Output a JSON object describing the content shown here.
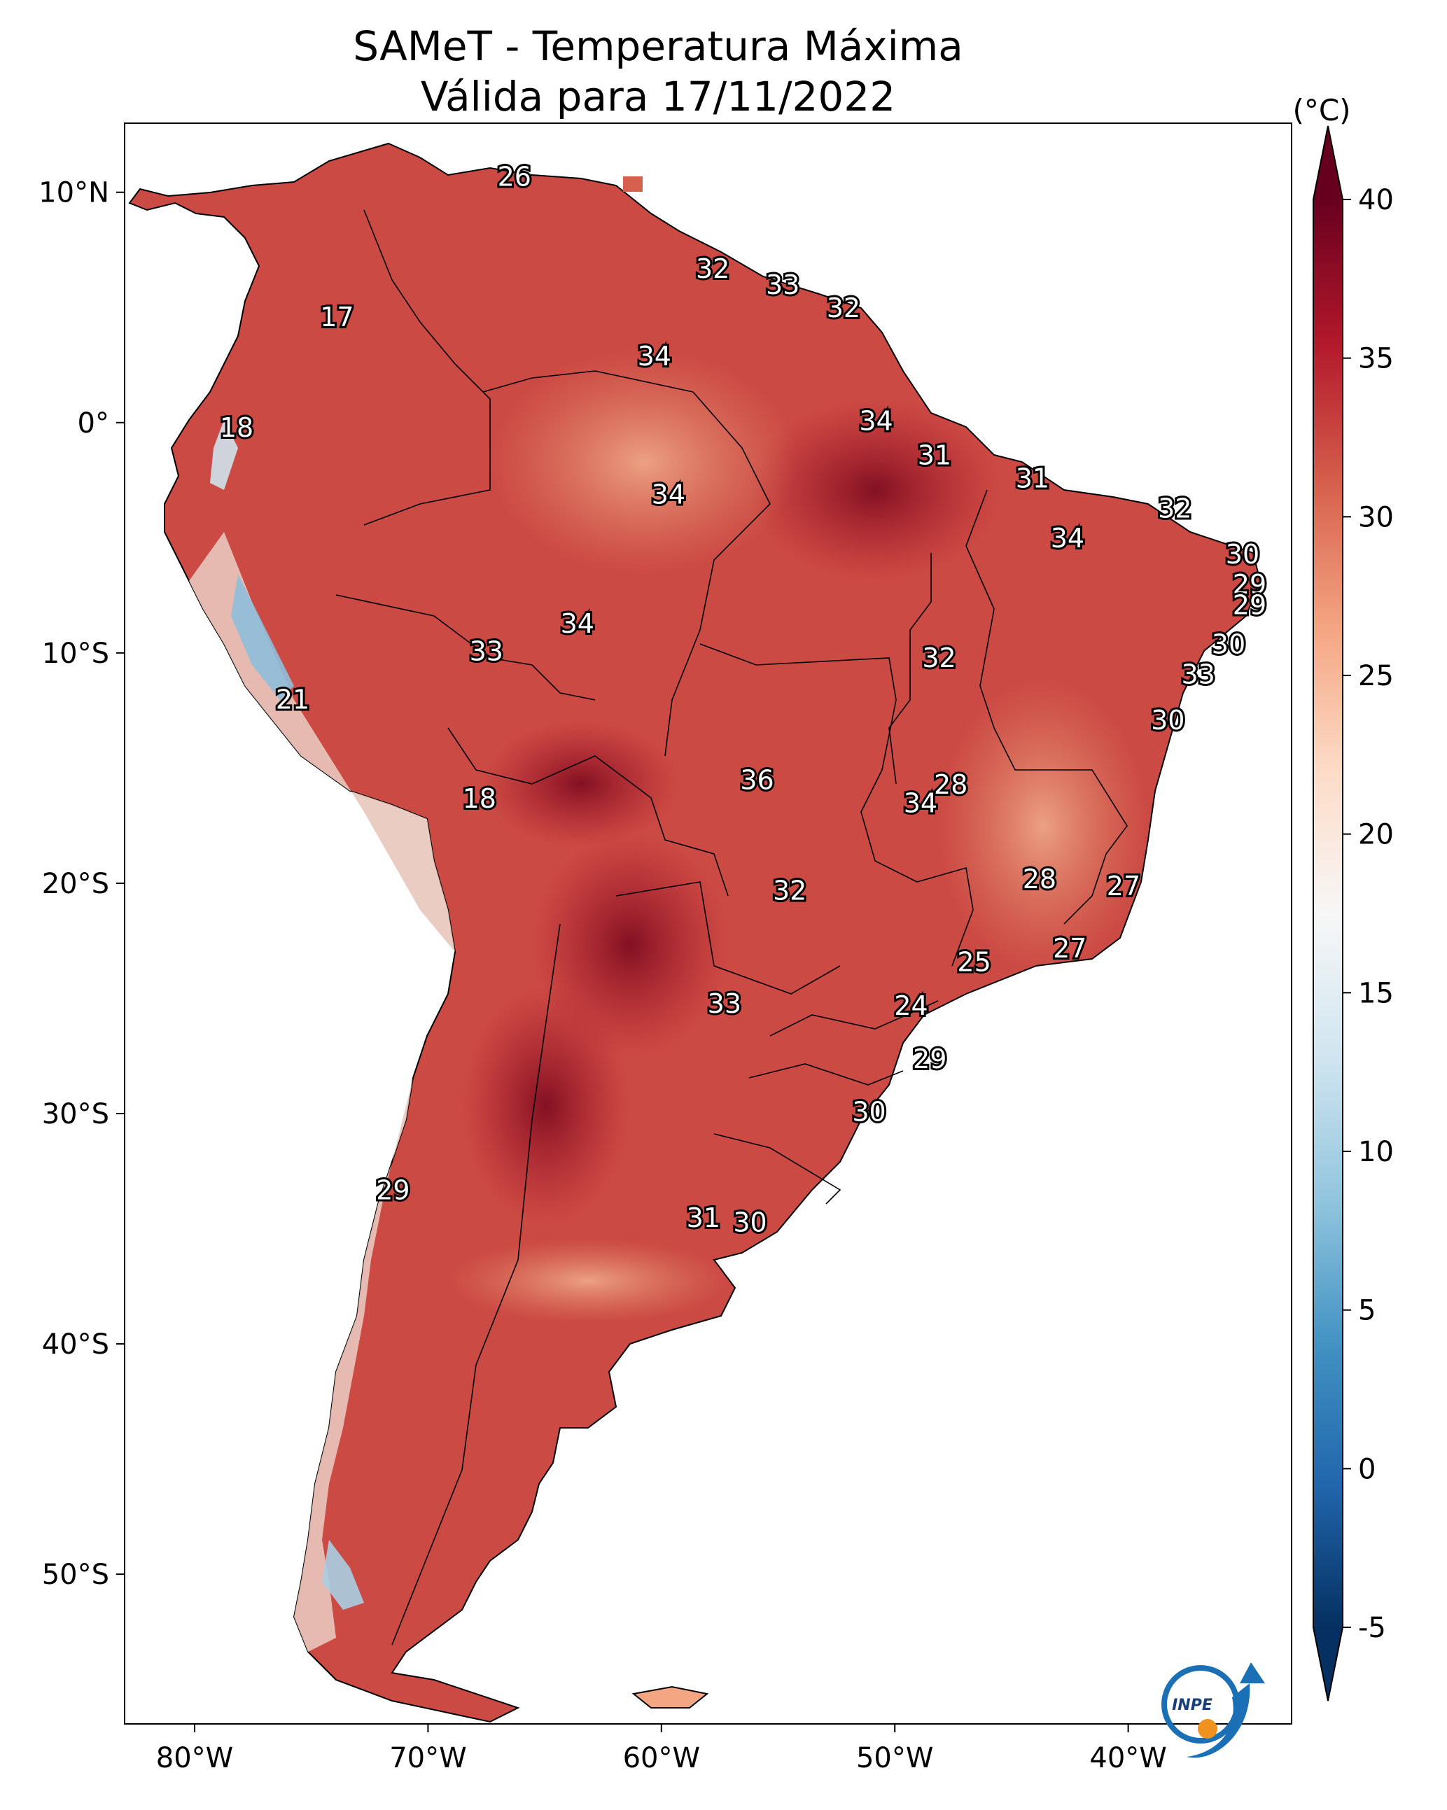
{
  "title": {
    "line1": "SAMeT - Temperatura Máxima",
    "line2": "Válida para 17/11/2022"
  },
  "map": {
    "extent": {
      "lon_min": -83.0,
      "lon_max": -33.0,
      "lat_min": -56.5,
      "lat_max": 13.0
    },
    "lon_ticks": [
      {
        "value": -80,
        "label": "80°W"
      },
      {
        "value": -70,
        "label": "70°W"
      },
      {
        "value": -60,
        "label": "60°W"
      },
      {
        "value": -50,
        "label": "50°W"
      },
      {
        "value": -40,
        "label": "40°W"
      }
    ],
    "lat_ticks": [
      {
        "value": 10,
        "label": "10°N"
      },
      {
        "value": 0,
        "label": "0°"
      },
      {
        "value": -10,
        "label": "10°S"
      },
      {
        "value": -20,
        "label": "20°S"
      },
      {
        "value": -30,
        "label": "30°S"
      },
      {
        "value": -40,
        "label": "40°S"
      },
      {
        "value": -50,
        "label": "50°S"
      }
    ],
    "station_labels": [
      {
        "text": "26",
        "lon": -66.3,
        "lat": 10.6
      },
      {
        "text": "32",
        "lon": -57.8,
        "lat": 6.6
      },
      {
        "text": "33",
        "lon": -54.8,
        "lat": 5.9
      },
      {
        "text": "32",
        "lon": -52.2,
        "lat": 4.9
      },
      {
        "text": "17",
        "lon": -73.9,
        "lat": 4.5
      },
      {
        "text": "34",
        "lon": -60.3,
        "lat": 2.8
      },
      {
        "text": "18",
        "lon": -78.2,
        "lat": -0.3
      },
      {
        "text": "34",
        "lon": -50.8,
        "lat": 0.0
      },
      {
        "text": "31",
        "lon": -48.3,
        "lat": -1.5
      },
      {
        "text": "31",
        "lon": -44.1,
        "lat": -2.5
      },
      {
        "text": "34",
        "lon": -59.7,
        "lat": -3.2
      },
      {
        "text": "32",
        "lon": -38.0,
        "lat": -3.8
      },
      {
        "text": "34",
        "lon": -42.6,
        "lat": -5.1
      },
      {
        "text": "30",
        "lon": -35.1,
        "lat": -5.8
      },
      {
        "text": "29",
        "lon": -34.8,
        "lat": -7.1
      },
      {
        "text": "29",
        "lon": -34.8,
        "lat": -8.0
      },
      {
        "text": "34",
        "lon": -63.6,
        "lat": -8.8
      },
      {
        "text": "30",
        "lon": -35.7,
        "lat": -9.7
      },
      {
        "text": "33",
        "lon": -67.5,
        "lat": -10.0
      },
      {
        "text": "32",
        "lon": -48.1,
        "lat": -10.3
      },
      {
        "text": "33",
        "lon": -37.0,
        "lat": -11.0
      },
      {
        "text": "21",
        "lon": -75.8,
        "lat": -12.1
      },
      {
        "text": "30",
        "lon": -38.3,
        "lat": -13.0
      },
      {
        "text": "28",
        "lon": -47.6,
        "lat": -15.8
      },
      {
        "text": "36",
        "lon": -55.9,
        "lat": -15.6
      },
      {
        "text": "34",
        "lon": -48.9,
        "lat": -16.6
      },
      {
        "text": "18",
        "lon": -67.8,
        "lat": -16.4
      },
      {
        "text": "28",
        "lon": -43.8,
        "lat": -19.9
      },
      {
        "text": "27",
        "lon": -40.2,
        "lat": -20.2
      },
      {
        "text": "32",
        "lon": -54.5,
        "lat": -20.4
      },
      {
        "text": "27",
        "lon": -42.5,
        "lat": -22.9
      },
      {
        "text": "25",
        "lon": -46.6,
        "lat": -23.5
      },
      {
        "text": "33",
        "lon": -57.3,
        "lat": -25.3
      },
      {
        "text": "24",
        "lon": -49.3,
        "lat": -25.4
      },
      {
        "text": "29",
        "lon": -48.5,
        "lat": -27.7
      },
      {
        "text": "30",
        "lon": -51.1,
        "lat": -30.0
      },
      {
        "text": "29",
        "lon": -71.5,
        "lat": -33.4
      },
      {
        "text": "31",
        "lon": -58.2,
        "lat": -34.6
      },
      {
        "text": "30",
        "lon": -56.2,
        "lat": -34.8
      }
    ]
  },
  "colorbar": {
    "unit": "(°C)",
    "vmin": -5,
    "vmax": 40,
    "ticks": [
      "-5",
      "0",
      "5",
      "10",
      "15",
      "20",
      "25",
      "30",
      "35",
      "40"
    ],
    "colors": [
      "#053061",
      "#2166ac",
      "#4393c3",
      "#92c5de",
      "#d1e5f0",
      "#f7f7f7",
      "#fddbc7",
      "#f4a582",
      "#d6604d",
      "#b2182b",
      "#67001f"
    ]
  },
  "logo": {
    "text": "INPE"
  }
}
